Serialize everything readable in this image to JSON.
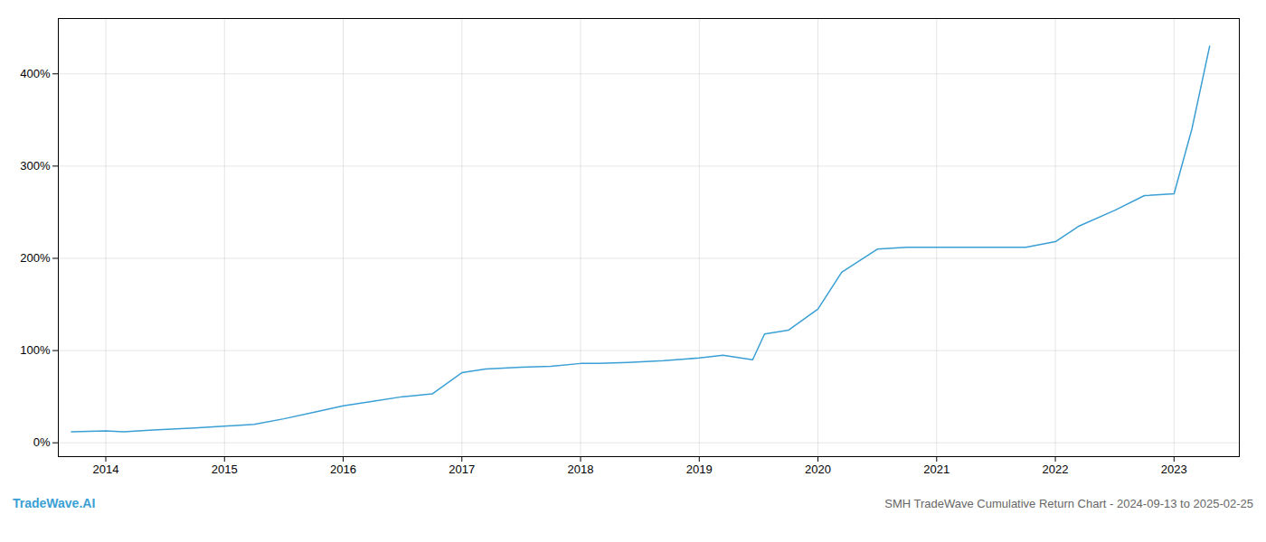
{
  "chart_data": {
    "type": "line",
    "title": "SMH TradeWave Cumulative Return Chart - 2024-09-13 to 2025-02-25",
    "annotations": [
      "TradeWave.AI"
    ],
    "x": [
      2013.71,
      2014.0,
      2014.15,
      2014.4,
      2014.75,
      2015.0,
      2015.25,
      2015.5,
      2015.75,
      2016.0,
      2016.25,
      2016.5,
      2016.75,
      2017.0,
      2017.2,
      2017.5,
      2017.75,
      2018.0,
      2018.15,
      2018.4,
      2018.7,
      2019.0,
      2019.2,
      2019.45,
      2019.55,
      2019.75,
      2020.0,
      2020.2,
      2020.5,
      2020.75,
      2021.0,
      2021.2,
      2021.5,
      2021.75,
      2022.0,
      2022.2,
      2022.5,
      2022.75,
      2023.0,
      2023.15,
      2023.3
    ],
    "values": [
      12,
      13,
      12,
      14,
      16,
      18,
      20,
      26,
      33,
      40,
      45,
      50,
      53,
      76,
      80,
      82,
      83,
      86,
      86,
      87,
      89,
      92,
      95,
      90,
      118,
      122,
      145,
      185,
      210,
      212,
      212,
      212,
      212,
      212,
      218,
      235,
      252,
      268,
      270,
      340,
      430
    ],
    "color": "#3a9fd4",
    "xlim": [
      2013.6,
      2023.55
    ],
    "xticks": [
      2014,
      2015,
      2016,
      2017,
      2018,
      2019,
      2020,
      2021,
      2022,
      2023
    ],
    "ylim": [
      -15,
      460
    ],
    "yticks": [
      {
        "value": 0,
        "label": "0%"
      },
      {
        "value": 100,
        "label": "100%"
      },
      {
        "value": 200,
        "label": "200%"
      },
      {
        "value": 300,
        "label": "300%"
      },
      {
        "value": 400,
        "label": "400%"
      }
    ],
    "grid": true
  }
}
